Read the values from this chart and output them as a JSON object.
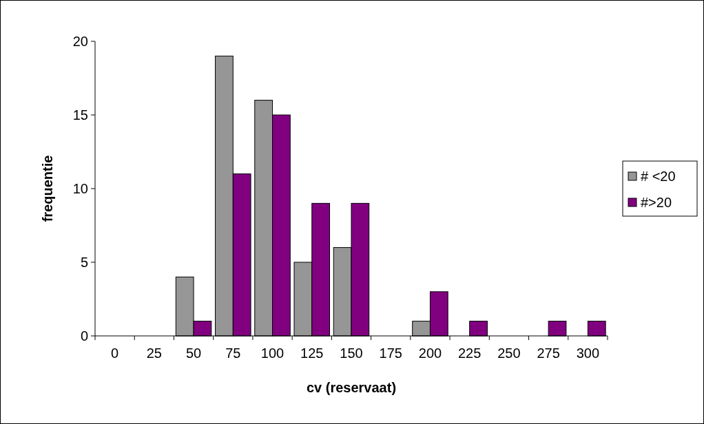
{
  "chart_data": {
    "type": "bar",
    "xlabel": "cv (reservaat)",
    "ylabel": "frequentie",
    "categories": [
      "0",
      "25",
      "50",
      "75",
      "100",
      "125",
      "150",
      "175",
      "200",
      "225",
      "250",
      "275",
      "300"
    ],
    "series": [
      {
        "name": "# <20",
        "color": "#969696",
        "values": [
          0,
          0,
          4,
          19,
          16,
          5,
          6,
          0,
          1,
          0,
          0,
          0,
          0
        ]
      },
      {
        "name": "#>20",
        "color": "#800080",
        "values": [
          0,
          0,
          1,
          11,
          15,
          9,
          9,
          0,
          3,
          1,
          0,
          1,
          1
        ]
      }
    ],
    "ylim": [
      0,
      20
    ],
    "yticks": [
      0,
      5,
      10,
      15,
      20
    ],
    "grid": false,
    "legend": "right"
  }
}
